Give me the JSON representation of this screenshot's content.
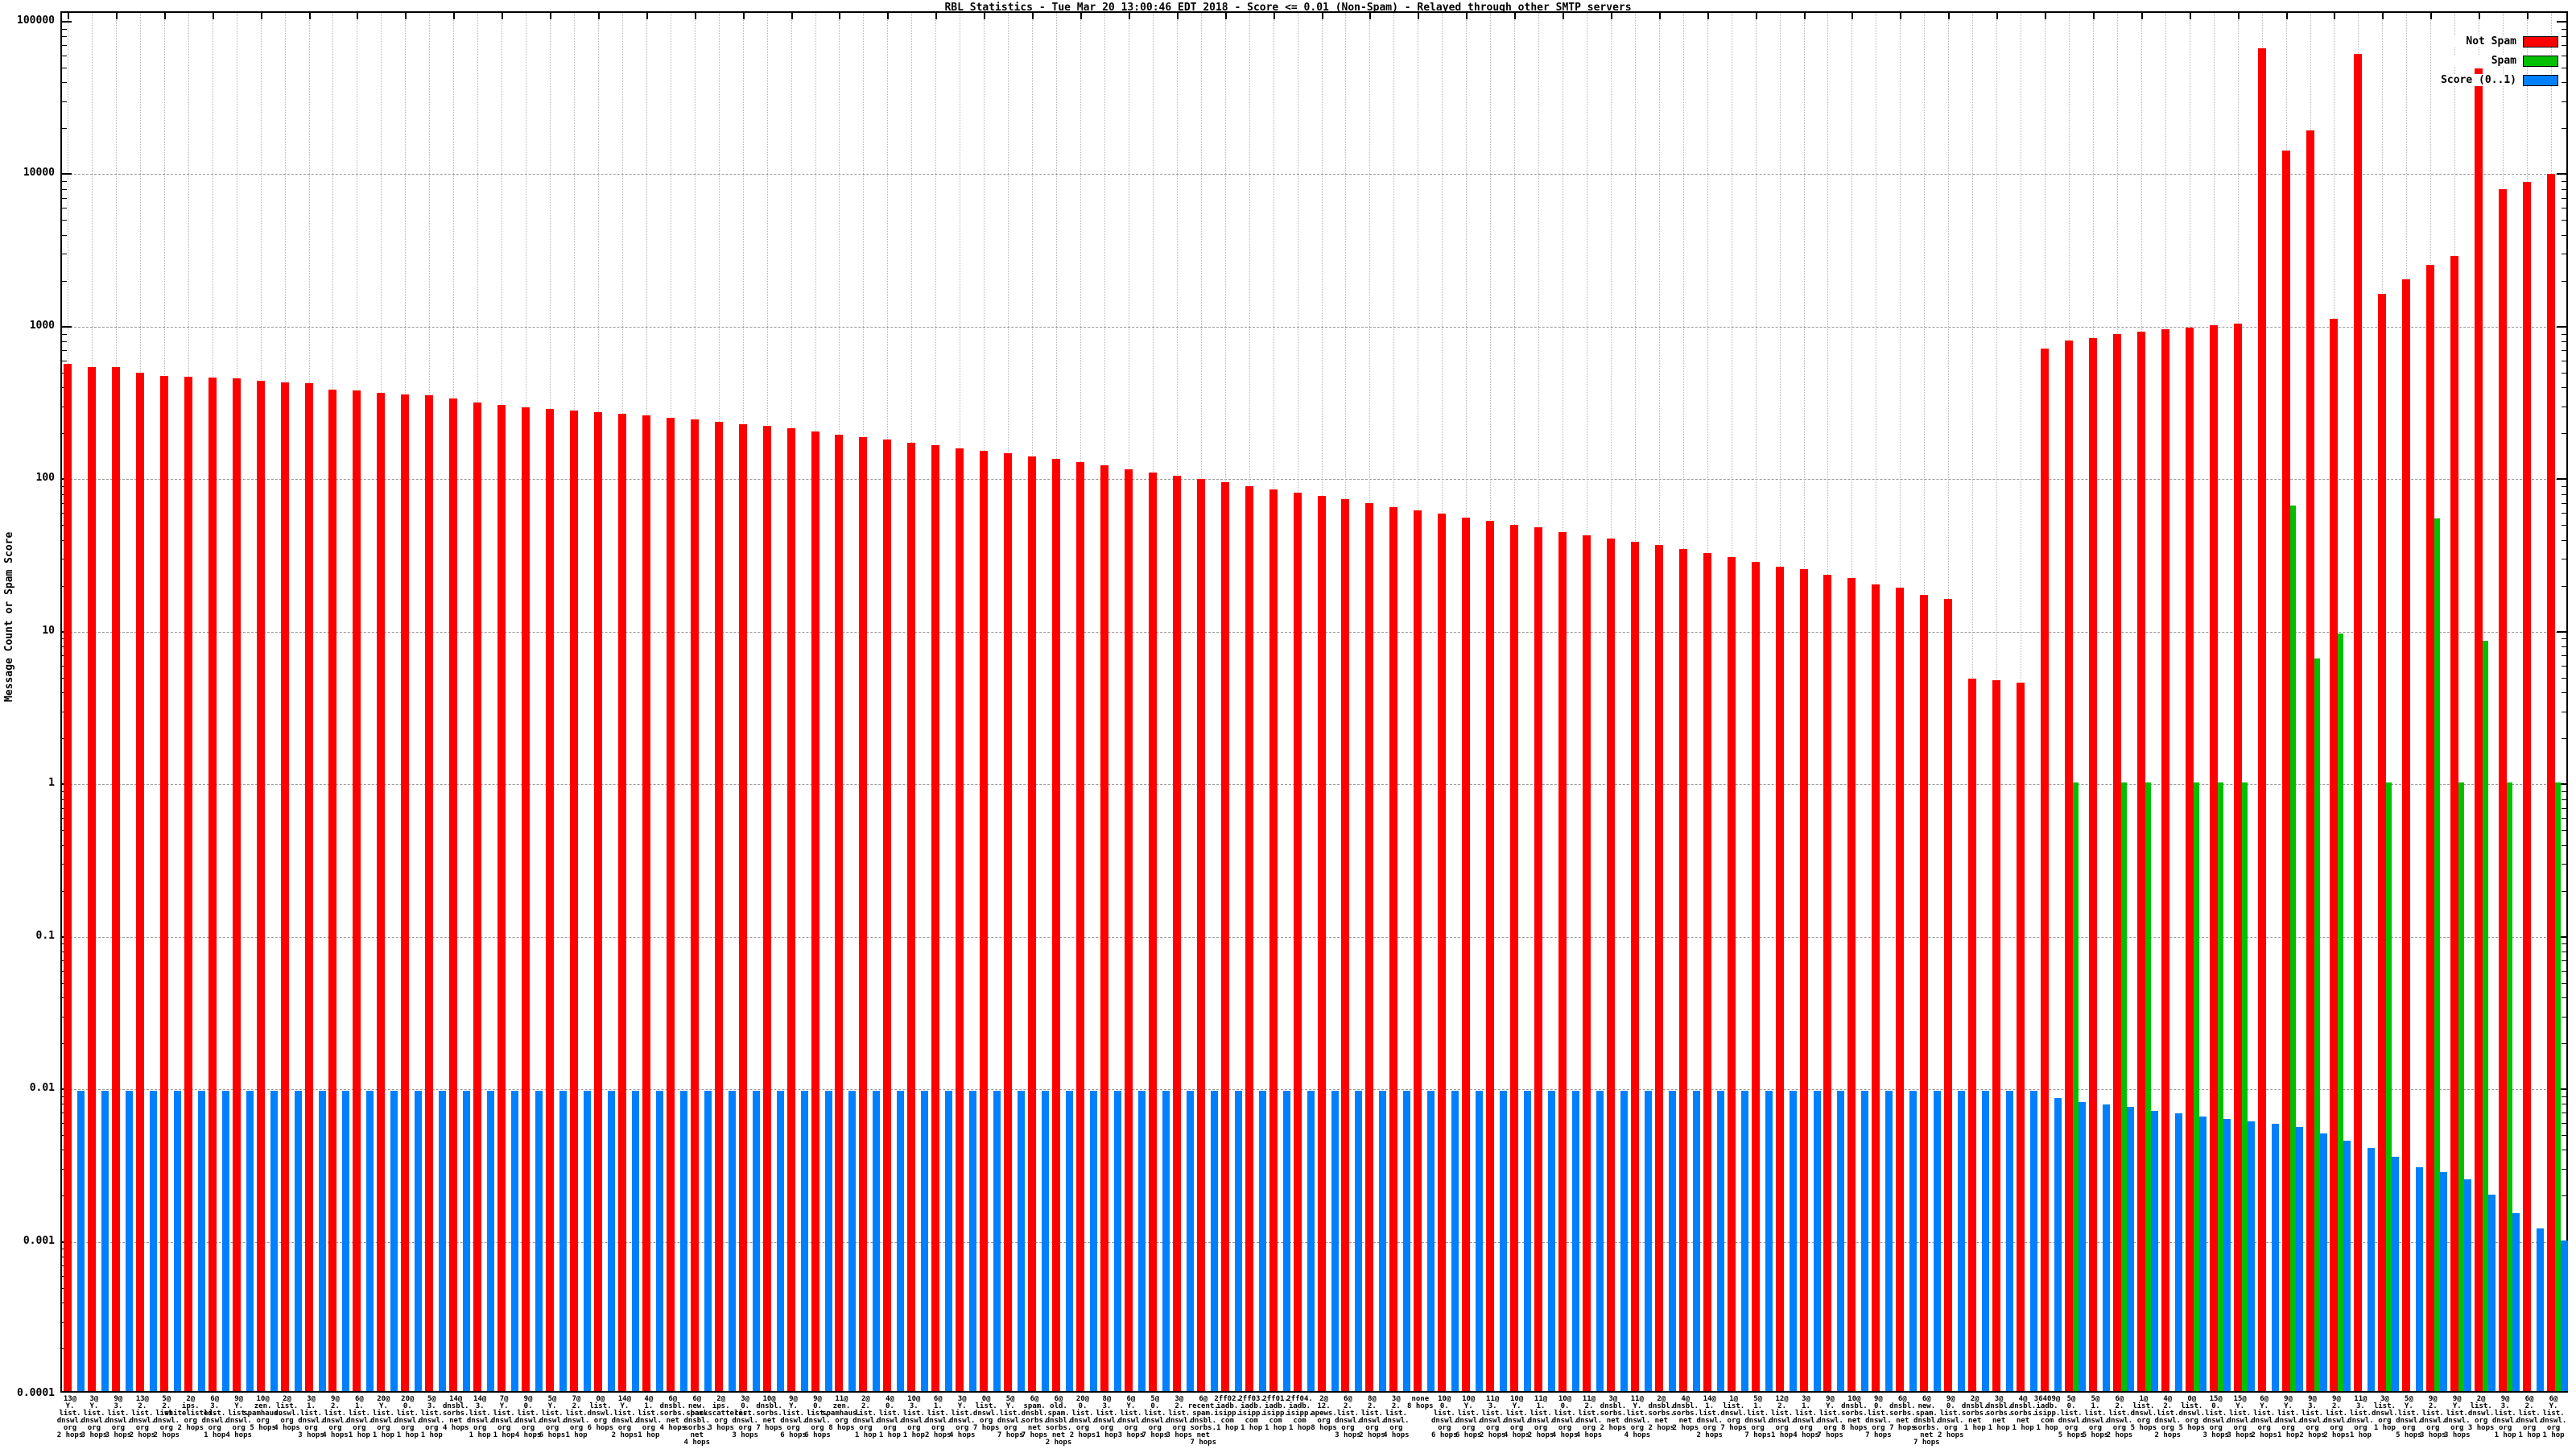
{
  "title": "RBL Statistics - Tue Mar 20 13:00:46 EDT 2018 - Score <= 0.01 (Non-Spam) - Relayed through other SMTP servers",
  "y_axis": {
    "label": "Message Count or Spam Score",
    "ticks": [
      "100000",
      "10000",
      "1000",
      "100",
      "10",
      "1",
      "0.1",
      "0.01",
      "0.001",
      "0.0001"
    ]
  },
  "legend": {
    "items": [
      {
        "label": "Not Spam",
        "color": "#ff0000"
      },
      {
        "label": "Spam",
        "color": "#00c000"
      },
      {
        "label": "Score (0..1)",
        "color": "#0080ff"
      }
    ]
  },
  "chart_data": {
    "type": "bar",
    "y_scale": "log10",
    "ylim": [
      0.0001,
      100000
    ],
    "grid": true,
    "legend_position": "top-right",
    "series_names": [
      "Not Spam",
      "Spam",
      "Score (0..1)"
    ],
    "groups": [
      {
        "label": "13@Y.list.dnswl.org 2 hops",
        "not_spam": 560,
        "spam": null,
        "score": 0.0095
      },
      {
        "label": "3@Y.list.dnswl.org 3 hops",
        "not_spam": 530,
        "spam": null,
        "score": 0.0095
      },
      {
        "label": "9@3.list.dnswl.org 3 hops",
        "not_spam": 530,
        "spam": null,
        "score": 0.0095
      },
      {
        "label": "13@2.list.dnswl.org 2 hops",
        "not_spam": 490,
        "spam": null,
        "score": 0.0095
      },
      {
        "label": "5@2.list.dnswl.org 2 hops",
        "not_spam": 465,
        "spam": null,
        "score": 0.0095
      },
      {
        "label": "2@ips.whitelisted.org 2 hops",
        "not_spam": 460,
        "spam": null,
        "score": 0.0095
      },
      {
        "label": "6@3.list.dnswl.org 1 hop",
        "not_spam": 455,
        "spam": null,
        "score": 0.0095
      },
      {
        "label": "9@Y.list.dnswl.org 4 hops",
        "not_spam": 450,
        "spam": null,
        "score": 0.0095
      },
      {
        "label": "10@zen.spamhaus.org 5 hops",
        "not_spam": 430,
        "spam": null,
        "score": 0.0095
      },
      {
        "label": "2@list.dnswl.org 4 hops",
        "not_spam": 420,
        "spam": null,
        "score": 0.0095
      },
      {
        "label": "3@1.list.dnswl.org 3 hops",
        "not_spam": 415,
        "spam": null,
        "score": 0.0095
      },
      {
        "label": "9@2.list.dnswl.org 4 hops",
        "not_spam": 380,
        "spam": null,
        "score": 0.0095
      },
      {
        "label": "6@1.list.dnswl.org 1 hop",
        "not_spam": 375,
        "spam": null,
        "score": 0.0095
      },
      {
        "label": "20@Y.list.dnswl.org 1 hop",
        "not_spam": 360,
        "spam": null,
        "score": 0.0095
      },
      {
        "label": "20@0.list.dnswl.org 1 hop",
        "not_spam": 350,
        "spam": null,
        "score": 0.0095
      },
      {
        "label": "5@3.list.dnswl.org 1 hop",
        "not_spam": 345,
        "spam": null,
        "score": 0.0095
      },
      {
        "label": "14@dnsbl.sorbs.net 4 hops",
        "not_spam": 330,
        "spam": null,
        "score": 0.0095
      },
      {
        "label": "14@3.list.dnswl.org 1 hop",
        "not_spam": 310,
        "spam": null,
        "score": 0.0095
      },
      {
        "label": "7@Y.list.dnswl.org 1 hop",
        "not_spam": 300,
        "spam": null,
        "score": 0.0095
      },
      {
        "label": "9@0.list.dnswl.org 4 hops",
        "not_spam": 290,
        "spam": null,
        "score": 0.0095
      },
      {
        "label": "5@Y.list.dnswl.org 6 hops",
        "not_spam": 282,
        "spam": null,
        "score": 0.0095
      },
      {
        "label": "7@2.list.dnswl.org 1 hop",
        "not_spam": 275,
        "spam": null,
        "score": 0.0095
      },
      {
        "label": "0@list.dnswl.org 6 hops",
        "not_spam": 268,
        "spam": null,
        "score": 0.0095
      },
      {
        "label": "14@Y.list.dnswl.org 2 hops",
        "not_spam": 262,
        "spam": null,
        "score": 0.0095
      },
      {
        "label": "4@1.list.dnswl.org 1 hop",
        "not_spam": 255,
        "spam": null,
        "score": 0.0095
      },
      {
        "label": "6@dnsbl.sorbs.net 4 hops",
        "not_spam": 248,
        "spam": null,
        "score": 0.0095
      },
      {
        "label": "6@new.spam.dnsbl.sorbs.net 4 hops",
        "not_spam": 240,
        "spam": null,
        "score": 0.0095
      },
      {
        "label": "2@ips.backscatterer.org 3 hops",
        "not_spam": 232,
        "spam": null,
        "score": 0.0095
      },
      {
        "label": "3@0.list.dnswl.org 3 hops",
        "not_spam": 225,
        "spam": null,
        "score": 0.0095
      },
      {
        "label": "10@dnsbl.sorbs.net 7 hops",
        "not_spam": 218,
        "spam": null,
        "score": 0.0095
      },
      {
        "label": "9@Y.list.dnswl.org 6 hops",
        "not_spam": 210,
        "spam": null,
        "score": 0.0095
      },
      {
        "label": "9@0.list.dnswl.org 6 hops",
        "not_spam": 200,
        "spam": null,
        "score": 0.0095
      },
      {
        "label": "11@zen.spamhaus.org 8 hops",
        "not_spam": 192,
        "spam": null,
        "score": 0.0095
      },
      {
        "label": "2@2.list.dnswl.org 1 hop",
        "not_spam": 185,
        "spam": null,
        "score": 0.0095
      },
      {
        "label": "4@0.list.dnswl.org 1 hop",
        "not_spam": 178,
        "spam": null,
        "score": 0.0095
      },
      {
        "label": "10@3.list.dnswl.org 1 hop",
        "not_spam": 170,
        "spam": null,
        "score": 0.0095
      },
      {
        "label": "6@1.list.dnswl.org 2 hops",
        "not_spam": 163,
        "spam": null,
        "score": 0.0095
      },
      {
        "label": "3@Y.list.dnswl.org 4 hops",
        "not_spam": 156,
        "spam": null,
        "score": 0.0095
      },
      {
        "label": "0@list.dnswl.org 7 hops",
        "not_spam": 150,
        "spam": null,
        "score": 0.0095
      },
      {
        "label": "5@Y.list.dnswl.org 7 hops",
        "not_spam": 144,
        "spam": null,
        "score": 0.0095
      },
      {
        "label": "6@spam.dnsbl.sorbs.net 7 hops",
        "not_spam": 138,
        "spam": null,
        "score": 0.0095
      },
      {
        "label": "6@old.spam.dnsbl.sorbs.net 2 hops",
        "not_spam": 132,
        "spam": null,
        "score": 0.0095
      },
      {
        "label": "20@0.list.dnswl.org 2 hops",
        "not_spam": 126,
        "spam": null,
        "score": 0.0095
      },
      {
        "label": "8@3.list.dnswl.org 1 hop",
        "not_spam": 120,
        "spam": null,
        "score": 0.0095
      },
      {
        "label": "6@Y.list.dnswl.org 3 hops",
        "not_spam": 114,
        "spam": null,
        "score": 0.0095
      },
      {
        "label": "5@0.list.dnswl.org 7 hops",
        "not_spam": 108,
        "spam": null,
        "score": 0.0095
      },
      {
        "label": "3@2.list.dnswl.org 3 hops",
        "not_spam": 103,
        "spam": null,
        "score": 0.0095
      },
      {
        "label": "6@recent.spam.dnsbl.sorbs.net 7 hops",
        "not_spam": 98,
        "spam": null,
        "score": 0.0095
      },
      {
        "label": "2ff02.iadb.isipp.com 1 hop",
        "not_spam": 93,
        "spam": null,
        "score": 0.0095
      },
      {
        "label": "2ff03.iadb.isipp.com 1 hop",
        "not_spam": 88,
        "spam": null,
        "score": 0.0095
      },
      {
        "label": "2ff01.iadb.isipp.com 1 hop",
        "not_spam": 84,
        "spam": null,
        "score": 0.0095
      },
      {
        "label": "2ff04.iadb.isipp.com 1 hop",
        "not_spam": 80,
        "spam": null,
        "score": 0.0095
      },
      {
        "label": "2@12.apews.org 8 hops",
        "not_spam": 76,
        "spam": null,
        "score": 0.0095
      },
      {
        "label": "6@2.list.dnswl.org 3 hops",
        "not_spam": 72,
        "spam": null,
        "score": 0.0095
      },
      {
        "label": "8@2.list.dnswl.org 2 hops",
        "not_spam": 68,
        "spam": null,
        "score": 0.0095
      },
      {
        "label": "3@2.list.dnswl.org 4 hops",
        "not_spam": 64,
        "spam": null,
        "score": 0.0095
      },
      {
        "label": "none 8 hops",
        "not_spam": 61,
        "spam": null,
        "score": 0.0095
      },
      {
        "label": "10@0.list.dnswl.org 6 hops",
        "not_spam": 58,
        "spam": null,
        "score": 0.0095
      },
      {
        "label": "10@Y.list.dnswl.org 6 hops",
        "not_spam": 55,
        "spam": null,
        "score": 0.0095
      },
      {
        "label": "11@3.list.dnswl.org 2 hops",
        "not_spam": 52,
        "spam": null,
        "score": 0.0095
      },
      {
        "label": "10@Y.list.dnswl.org 4 hops",
        "not_spam": 49,
        "spam": null,
        "score": 0.0095
      },
      {
        "label": "11@1.list.dnswl.org 2 hops",
        "not_spam": 47,
        "spam": null,
        "score": 0.0095
      },
      {
        "label": "10@0.list.dnswl.org 4 hops",
        "not_spam": 44,
        "spam": null,
        "score": 0.0095
      },
      {
        "label": "11@2.list.dnswl.org 4 hops",
        "not_spam": 42,
        "spam": null,
        "score": 0.0095
      },
      {
        "label": "3@dnsbl.sorbs.net 2 hops",
        "not_spam": 40,
        "spam": null,
        "score": 0.0095
      },
      {
        "label": "11@Y.list.dnswl.org 4 hops",
        "not_spam": 38,
        "spam": null,
        "score": 0.0095
      },
      {
        "label": "2@dnsbl.sorbs.net 2 hops",
        "not_spam": 36,
        "spam": null,
        "score": 0.0095
      },
      {
        "label": "4@dnsbl.sorbs.net 2 hops",
        "not_spam": 34,
        "spam": null,
        "score": 0.0095
      },
      {
        "label": "14@1.list.dnswl.org 2 hops",
        "not_spam": 32,
        "spam": null,
        "score": 0.0095
      },
      {
        "label": "1@list.dnswl.org 7 hops",
        "not_spam": 30,
        "spam": null,
        "score": 0.0095
      },
      {
        "label": "5@1.list.dnswl.org 7 hops",
        "not_spam": 28,
        "spam": null,
        "score": 0.0095
      },
      {
        "label": "12@2.list.dnswl.org 1 hop",
        "not_spam": 26,
        "spam": null,
        "score": 0.0095
      },
      {
        "label": "3@1.list.dnswl.org 4 hops",
        "not_spam": 25,
        "spam": null,
        "score": 0.0095
      },
      {
        "label": "9@Y.list.dnswl.org 7 hops",
        "not_spam": 23,
        "spam": null,
        "score": 0.0095
      },
      {
        "label": "10@dnsbl.sorbs.net 8 hops",
        "not_spam": 22,
        "spam": null,
        "score": 0.0095
      },
      {
        "label": "9@0.list.dnswl.org 7 hops",
        "not_spam": 20,
        "spam": null,
        "score": 0.0095
      },
      {
        "label": "6@dnsbl.sorbs.net 7 hops",
        "not_spam": 19,
        "spam": null,
        "score": 0.0095
      },
      {
        "label": "6@new.spam.dnsbl.sorbs.net 7 hops",
        "not_spam": 17,
        "spam": null,
        "score": 0.0095
      },
      {
        "label": "9@0.list.dnswl.org 2 hops",
        "not_spam": 16,
        "spam": null,
        "score": 0.0095
      },
      {
        "label": "2@dnsbl.sorbs.net 1 hop",
        "not_spam": 4.8,
        "spam": null,
        "score": 0.0095
      },
      {
        "label": "3@dnsbl.sorbs.net 1 hop",
        "not_spam": 4.7,
        "spam": null,
        "score": 0.0095
      },
      {
        "label": "4@dnsbl.sorbs.net 1 hop",
        "not_spam": 4.5,
        "spam": null,
        "score": 0.0095
      },
      {
        "label": "36409@iadb.isipp.com 1 hop",
        "not_spam": 700,
        "spam": null,
        "score": 0.0085
      },
      {
        "label": "5@0.list.dnswl.org 5 hops",
        "not_spam": 790,
        "spam": 1,
        "score": 0.008
      },
      {
        "label": "5@1.list.dnswl.org 5 hops",
        "not_spam": 820,
        "spam": null,
        "score": 0.0078
      },
      {
        "label": "6@2.list.dnswl.org 2 hops",
        "not_spam": 870,
        "spam": 1,
        "score": 0.0075
      },
      {
        "label": "1@list.dnswl.org 5 hops",
        "not_spam": 910,
        "spam": 1,
        "score": 0.007
      },
      {
        "label": "4@2.list.dnswl.org 2 hops",
        "not_spam": 940,
        "spam": null,
        "score": 0.0068
      },
      {
        "label": "0@list.dnswl.org 5 hops",
        "not_spam": 960,
        "spam": 1,
        "score": 0.0065
      },
      {
        "label": "15@0.list.dnswl.org 3 hops",
        "not_spam": 1000,
        "spam": 1,
        "score": 0.0062
      },
      {
        "label": "15@Y.list.dnswl.org 3 hops",
        "not_spam": 1020,
        "spam": 1,
        "score": 0.006
      },
      {
        "label": "6@Y.list.dnswl.org 2 hops",
        "not_spam": 65000,
        "spam": null,
        "score": 0.0058
      },
      {
        "label": "9@Y.list.dnswl.org 1 hop",
        "not_spam": 14000,
        "spam": 66,
        "score": 0.0055
      },
      {
        "label": "9@3.list.dnswl.org 2 hops",
        "not_spam": 19000,
        "spam": 6.5,
        "score": 0.005
      },
      {
        "label": "9@2.list.dnswl.org 2 hops",
        "not_spam": 1100,
        "spam": 9.5,
        "score": 0.0045
      },
      {
        "label": "11@3.list.dnswl.org 1 hop",
        "not_spam": 60000,
        "spam": null,
        "score": 0.004
      },
      {
        "label": "3@list.dnswl.org 1 hop",
        "not_spam": 1600,
        "spam": 1,
        "score": 0.0035
      },
      {
        "label": "5@Y.list.dnswl.org 5 hops",
        "not_spam": 2000,
        "spam": null,
        "score": 0.003
      },
      {
        "label": "9@2.list.dnswl.org 3 hops",
        "not_spam": 2500,
        "spam": 54,
        "score": 0.0028
      },
      {
        "label": "9@Y.list.dnswl.org 3 hops",
        "not_spam": 2850,
        "spam": 1,
        "score": 0.0025
      },
      {
        "label": "2@list.dnswl.org 3 hops",
        "not_spam": 48000,
        "spam": 8.5,
        "score": 0.002
      },
      {
        "label": "9@3.list.dnswl.org 1 hop",
        "not_spam": 7800,
        "spam": 1,
        "score": 0.0015
      },
      {
        "label": "6@2.list.dnswl.org 1 hop",
        "not_spam": 8700,
        "spam": null,
        "score": 0.0012
      },
      {
        "label": "6@Y.list.dnswl.org 1 hop",
        "not_spam": 9800,
        "spam": 1,
        "score": 0.001
      }
    ]
  }
}
